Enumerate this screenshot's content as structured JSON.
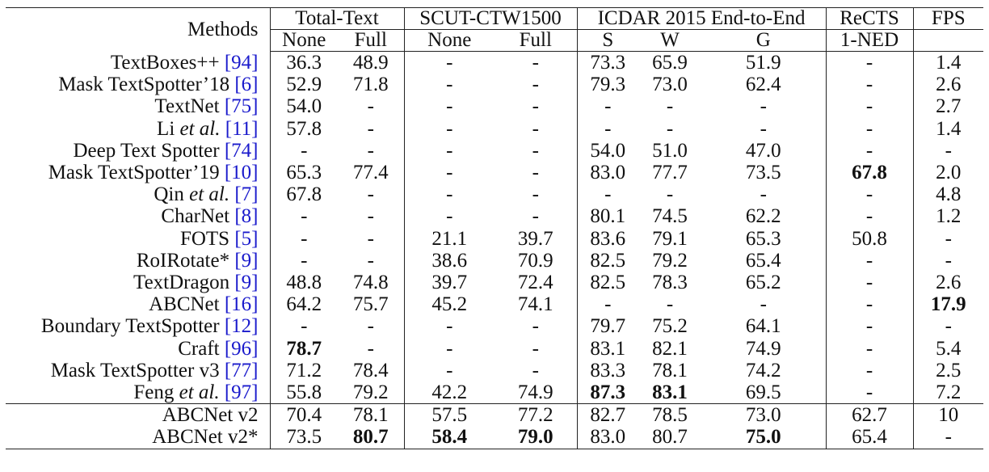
{
  "header": {
    "methods": "Methods",
    "groups": {
      "total_text": "Total-Text",
      "scut": "SCUT-CTW1500",
      "icdar": "ICDAR 2015 End-to-End",
      "rects": "ReCTS",
      "fps": "FPS"
    },
    "sub": {
      "tt_none": "None",
      "tt_full": "Full",
      "sc_none": "None",
      "sc_full": "Full",
      "ic_s": "S",
      "ic_w": "W",
      "ic_g": "G",
      "rects_ned": "1-NED"
    }
  },
  "rows": [
    {
      "name": "TextBoxes++ ",
      "ref": "[94]",
      "vals": [
        "36.3",
        "48.9",
        "-",
        "-",
        "73.3",
        "65.9",
        "51.9",
        "-",
        "1.4"
      ]
    },
    {
      "name": "Mask TextSpotter’18 ",
      "ref": "[6]",
      "vals": [
        "52.9",
        "71.8",
        "-",
        "-",
        "79.3",
        "73.0",
        "62.4",
        "-",
        "2.6"
      ]
    },
    {
      "name": "TextNet ",
      "ref": "[75]",
      "vals": [
        "54.0",
        "-",
        "-",
        "-",
        "-",
        "-",
        "-",
        "-",
        "2.7"
      ]
    },
    {
      "name": "Li ",
      "ital": "et al.",
      "name2": " ",
      "ref": "[11]",
      "vals": [
        "57.8",
        "-",
        "-",
        "-",
        "-",
        "-",
        "-",
        "-",
        "1.4"
      ]
    },
    {
      "name": "Deep Text Spotter ",
      "ref": "[74]",
      "vals": [
        "-",
        "-",
        "-",
        "-",
        "54.0",
        "51.0",
        "47.0",
        "-",
        "-"
      ]
    },
    {
      "name": "Mask TextSpotter’19 ",
      "ref": "[10]",
      "vals": [
        "65.3",
        "77.4",
        "-",
        "-",
        "83.0",
        "77.7",
        "73.5",
        "67.8",
        "2.0"
      ]
    },
    {
      "name": "Qin ",
      "ital": "et al.",
      "name2": " ",
      "ref": "[7]",
      "vals": [
        "67.8",
        "-",
        "-",
        "-",
        "-",
        "-",
        "-",
        "-",
        "4.8"
      ]
    },
    {
      "name": "CharNet ",
      "ref": "[8]",
      "vals": [
        "-",
        "-",
        "-",
        "-",
        "80.1",
        "74.5",
        "62.2",
        "-",
        "1.2"
      ]
    },
    {
      "name": "FOTS ",
      "ref": "[5]",
      "vals": [
        "-",
        "-",
        "21.1",
        "39.7",
        "83.6",
        "79.1",
        "65.3",
        "50.8",
        "-"
      ]
    },
    {
      "name": "RoIRotate* ",
      "ref": "[9]",
      "vals": [
        "-",
        "-",
        "38.6",
        "70.9",
        "82.5",
        "79.2",
        "65.4",
        "-",
        "-"
      ]
    },
    {
      "name": "TextDragon ",
      "ref": "[9]",
      "vals": [
        "48.8",
        "74.8",
        "39.7",
        "72.4",
        "82.5",
        "78.3",
        "65.2",
        "-",
        "2.6"
      ]
    },
    {
      "name": "ABCNet ",
      "ref": "[16]",
      "vals": [
        "64.2",
        "75.7",
        "45.2",
        "74.1",
        "-",
        "-",
        "-",
        "-",
        "17.9"
      ]
    },
    {
      "name": "Boundary TextSpotter ",
      "ref": "[12]",
      "vals": [
        "-",
        "-",
        "-",
        "-",
        "79.7",
        "75.2",
        "64.1",
        "-",
        "-"
      ]
    },
    {
      "name": "Craft ",
      "ref": "[96]",
      "vals": [
        "78.7",
        "-",
        "-",
        "-",
        "83.1",
        "82.1",
        "74.9",
        "-",
        "5.4"
      ]
    },
    {
      "name": "Mask TextSpotter v3 ",
      "ref": "[77]",
      "vals": [
        "71.2",
        "78.4",
        "-",
        "-",
        "83.3",
        "78.1",
        "74.2",
        "-",
        "2.5"
      ]
    },
    {
      "name": "Feng ",
      "ital": "et al.",
      "name2": " ",
      "ref": "[97]",
      "vals": [
        "55.8",
        "79.2",
        "42.2",
        "74.9",
        "87.3",
        "83.1",
        "69.5",
        "-",
        "7.2"
      ]
    },
    {
      "name": "ABCNet v2",
      "ref": "",
      "vals": [
        "70.4",
        "78.1",
        "57.5",
        "77.2",
        "82.7",
        "78.5",
        "73.0",
        "62.7",
        "10"
      ]
    },
    {
      "name": "ABCNet v2*",
      "ref": "",
      "vals": [
        "73.5",
        "80.7",
        "58.4",
        "79.0",
        "83.0",
        "80.7",
        "75.0",
        "65.4",
        "-"
      ]
    }
  ],
  "bold_cells": [
    [
      5,
      7
    ],
    [
      11,
      8
    ],
    [
      13,
      0
    ],
    [
      15,
      4
    ],
    [
      15,
      5
    ],
    [
      17,
      1
    ],
    [
      17,
      2
    ],
    [
      17,
      3
    ],
    [
      17,
      6
    ]
  ]
}
